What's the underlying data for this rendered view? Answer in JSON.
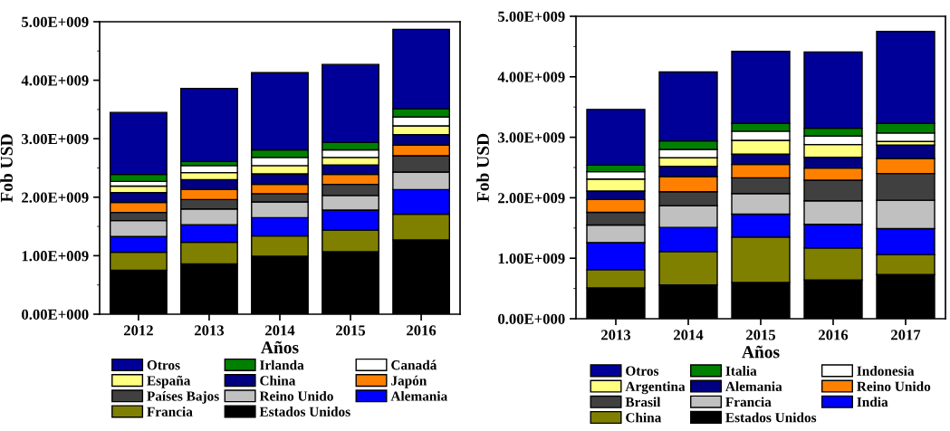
{
  "chart_data": [
    {
      "type": "bar",
      "stacked": true,
      "xlabel": "Años",
      "ylabel": "Fob USD",
      "categories": [
        "2012",
        "2013",
        "2014",
        "2015",
        "2016"
      ],
      "ylim": [
        0,
        5000000000
      ],
      "yticks": [
        {
          "value": 0,
          "label": "0.00E+000"
        },
        {
          "value": 1000000000,
          "label": "1.00E+009"
        },
        {
          "value": 2000000000,
          "label": "2.00E+009"
        },
        {
          "value": 3000000000,
          "label": "3.00E+009"
        },
        {
          "value": 4000000000,
          "label": "4.00E+009"
        },
        {
          "value": 5000000000,
          "label": "5.00E+009"
        }
      ],
      "grid": false,
      "legend": "bottom",
      "series": [
        {
          "name": "Estados Unidos",
          "color": "#000000",
          "values": [
            750000000,
            860000000,
            990000000,
            1070000000,
            1270000000
          ]
        },
        {
          "name": "Francia",
          "color": "#808000",
          "values": [
            310000000,
            370000000,
            350000000,
            370000000,
            440000000
          ]
        },
        {
          "name": "Alemania",
          "color": "#0000ff",
          "values": [
            270000000,
            300000000,
            310000000,
            340000000,
            420000000
          ]
        },
        {
          "name": "Reino Unido",
          "color": "#c0c0c0",
          "values": [
            270000000,
            270000000,
            270000000,
            250000000,
            300000000
          ]
        },
        {
          "name": "Países Bajos",
          "color": "#404040",
          "values": [
            140000000,
            160000000,
            140000000,
            190000000,
            280000000
          ]
        },
        {
          "name": "Japón",
          "color": "#ff8000",
          "values": [
            170000000,
            170000000,
            160000000,
            170000000,
            180000000
          ]
        },
        {
          "name": "China",
          "color": "#000080",
          "values": [
            170000000,
            170000000,
            180000000,
            160000000,
            180000000
          ]
        },
        {
          "name": "España",
          "color": "#ffff80",
          "values": [
            110000000,
            120000000,
            140000000,
            130000000,
            150000000
          ]
        },
        {
          "name": "Canadá",
          "color": "#ffffff",
          "values": [
            80000000,
            120000000,
            140000000,
            130000000,
            150000000
          ]
        },
        {
          "name": "Irlanda",
          "color": "#008000",
          "values": [
            120000000,
            70000000,
            130000000,
            130000000,
            140000000
          ]
        },
        {
          "name": "Otros",
          "color": "#000099",
          "values": [
            1060000000,
            1250000000,
            1320000000,
            1330000000,
            1360000000
          ]
        }
      ]
    },
    {
      "type": "bar",
      "stacked": true,
      "xlabel": "Años",
      "ylabel": "Fob USD",
      "categories": [
        "2013",
        "2014",
        "2015",
        "2016",
        "2017"
      ],
      "ylim": [
        0,
        5000000000
      ],
      "yticks": [
        {
          "value": 0,
          "label": "0.00E+000"
        },
        {
          "value": 1000000000,
          "label": "1.00E+009"
        },
        {
          "value": 2000000000,
          "label": "2.00E+009"
        },
        {
          "value": 3000000000,
          "label": "3.00E+009"
        },
        {
          "value": 4000000000,
          "label": "4.00E+009"
        },
        {
          "value": 5000000000,
          "label": "5.00E+009"
        }
      ],
      "grid": false,
      "legend": "bottom",
      "series": [
        {
          "name": "Estados Unidos",
          "color": "#000000",
          "values": [
            510000000,
            560000000,
            600000000,
            640000000,
            730000000
          ]
        },
        {
          "name": "China",
          "color": "#808000",
          "values": [
            300000000,
            550000000,
            750000000,
            530000000,
            330000000
          ]
        },
        {
          "name": "India",
          "color": "#0000ff",
          "values": [
            450000000,
            400000000,
            380000000,
            390000000,
            430000000
          ]
        },
        {
          "name": "Francia",
          "color": "#c0c0c0",
          "values": [
            290000000,
            360000000,
            340000000,
            390000000,
            470000000
          ]
        },
        {
          "name": "Brasil",
          "color": "#404040",
          "values": [
            210000000,
            230000000,
            260000000,
            340000000,
            440000000
          ]
        },
        {
          "name": "Reino Unido",
          "color": "#ff8000",
          "values": [
            210000000,
            250000000,
            220000000,
            200000000,
            250000000
          ]
        },
        {
          "name": "Alemania",
          "color": "#000080",
          "values": [
            140000000,
            170000000,
            170000000,
            180000000,
            220000000
          ]
        },
        {
          "name": "Argentina",
          "color": "#ffff80",
          "values": [
            200000000,
            140000000,
            230000000,
            210000000,
            60000000
          ]
        },
        {
          "name": "Indonesia",
          "color": "#ffffff",
          "values": [
            120000000,
            140000000,
            150000000,
            140000000,
            140000000
          ]
        },
        {
          "name": "Italia",
          "color": "#008000",
          "values": [
            110000000,
            140000000,
            130000000,
            130000000,
            160000000
          ]
        },
        {
          "name": "Otros",
          "color": "#000099",
          "values": [
            920000000,
            1140000000,
            1190000000,
            1260000000,
            1520000000
          ]
        }
      ]
    }
  ]
}
